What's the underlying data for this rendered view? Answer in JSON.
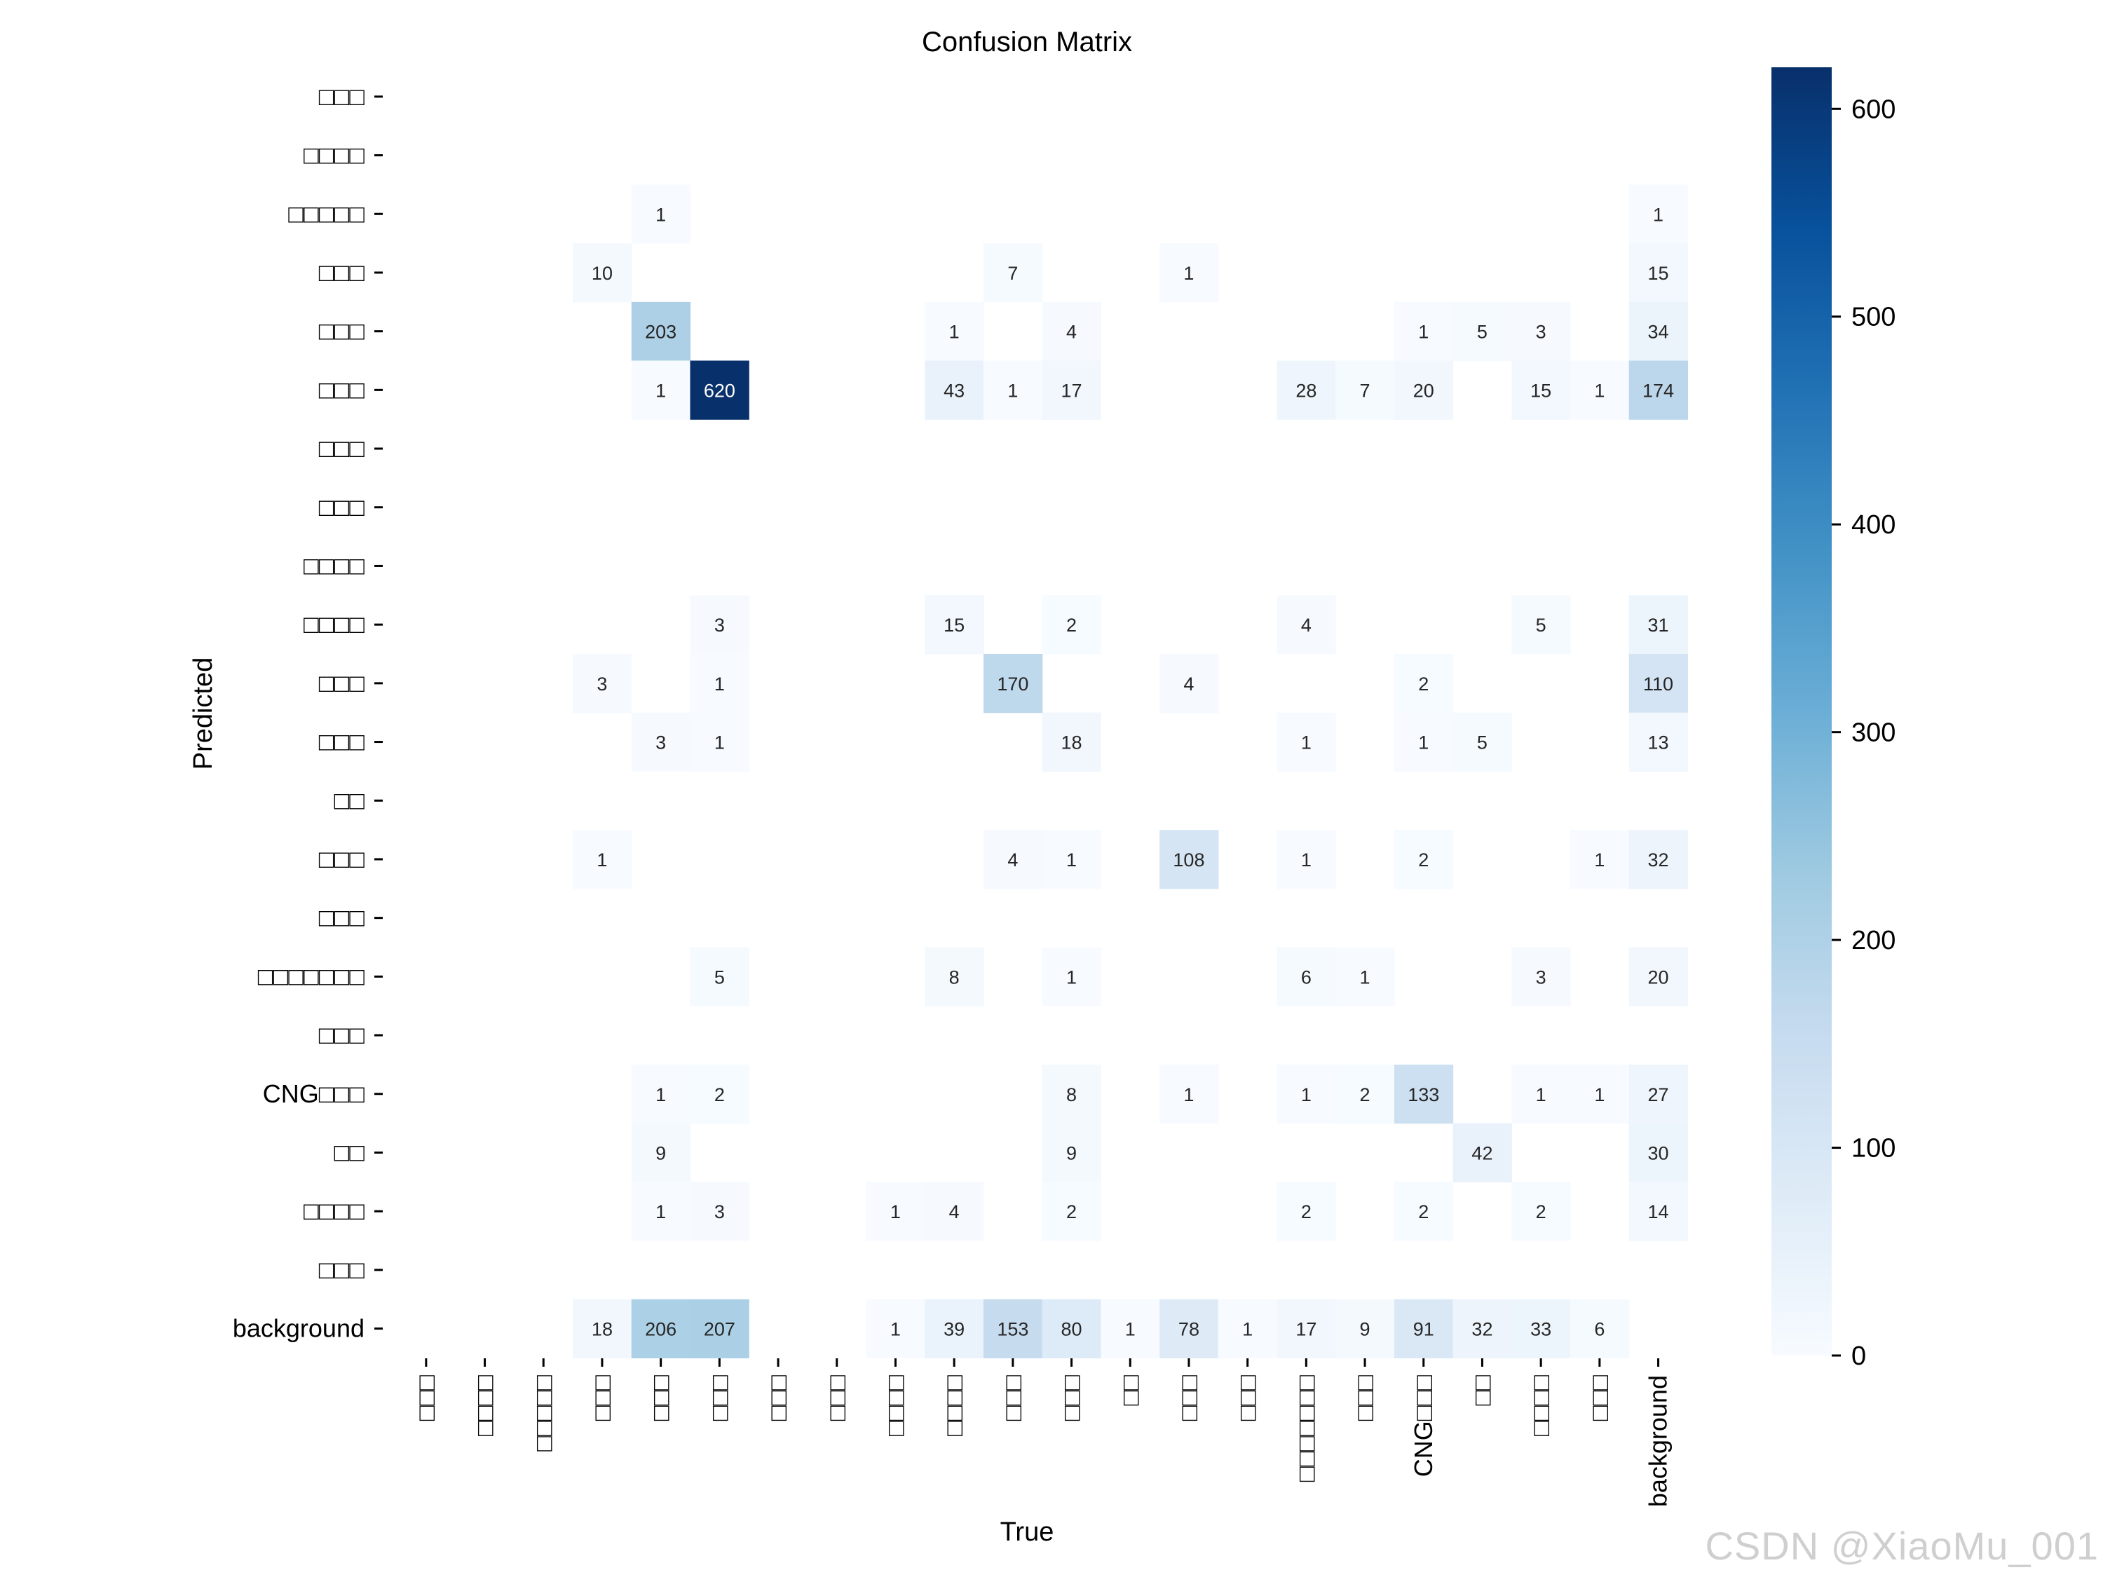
{
  "colors": {
    "low": "#f7fbff",
    "high": "#08306b"
  },
  "watermark": "CSDN @XiaoMu_001",
  "chart_data": {
    "type": "heatmap",
    "title": "Confusion Matrix",
    "xlabel": "True",
    "ylabel": "Predicted",
    "labels": [
      "□□□",
      "□□□□",
      "□□□□□",
      "□□□",
      "□□□",
      "□□□",
      "□□□",
      "□□□",
      "□□□□",
      "□□□□",
      "□□□",
      "□□□",
      "□□",
      "□□□",
      "□□□",
      "□□□□□□□",
      "□□□",
      "CNG□□□",
      "□□",
      "□□□□",
      "□□□",
      "background"
    ],
    "colorbar": {
      "min": 0,
      "max": 620,
      "ticks": [
        0,
        100,
        200,
        300,
        400,
        500,
        600
      ]
    },
    "matrix": [
      [
        null,
        null,
        null,
        null,
        null,
        null,
        null,
        null,
        null,
        null,
        null,
        null,
        null,
        null,
        null,
        null,
        null,
        null,
        null,
        null,
        null,
        null
      ],
      [
        null,
        null,
        null,
        null,
        null,
        null,
        null,
        null,
        null,
        null,
        null,
        null,
        null,
        null,
        null,
        null,
        null,
        null,
        null,
        null,
        null,
        null
      ],
      [
        null,
        null,
        null,
        null,
        1,
        null,
        null,
        null,
        null,
        null,
        null,
        null,
        null,
        null,
        null,
        null,
        null,
        null,
        null,
        null,
        null,
        1
      ],
      [
        null,
        null,
        null,
        10,
        null,
        null,
        null,
        null,
        null,
        null,
        7,
        null,
        null,
        1,
        null,
        null,
        null,
        null,
        null,
        null,
        null,
        15
      ],
      [
        null,
        null,
        null,
        null,
        203,
        null,
        null,
        null,
        null,
        1,
        null,
        4,
        null,
        null,
        null,
        null,
        null,
        1,
        5,
        3,
        null,
        34
      ],
      [
        null,
        null,
        null,
        null,
        1,
        620,
        null,
        null,
        null,
        43,
        1,
        17,
        null,
        null,
        null,
        28,
        7,
        20,
        null,
        15,
        1,
        174
      ],
      [
        null,
        null,
        null,
        null,
        null,
        null,
        null,
        null,
        null,
        null,
        null,
        null,
        null,
        null,
        null,
        null,
        null,
        null,
        null,
        null,
        null,
        null
      ],
      [
        null,
        null,
        null,
        null,
        null,
        null,
        null,
        null,
        null,
        null,
        null,
        null,
        null,
        null,
        null,
        null,
        null,
        null,
        null,
        null,
        null,
        null
      ],
      [
        null,
        null,
        null,
        null,
        null,
        null,
        null,
        null,
        null,
        null,
        null,
        null,
        null,
        null,
        null,
        null,
        null,
        null,
        null,
        null,
        null,
        null
      ],
      [
        null,
        null,
        null,
        null,
        null,
        3,
        null,
        null,
        null,
        15,
        null,
        2,
        null,
        null,
        null,
        4,
        null,
        null,
        null,
        5,
        null,
        31
      ],
      [
        null,
        null,
        null,
        3,
        null,
        1,
        null,
        null,
        null,
        null,
        170,
        null,
        null,
        4,
        null,
        null,
        null,
        2,
        null,
        null,
        null,
        110
      ],
      [
        null,
        null,
        null,
        null,
        3,
        1,
        null,
        null,
        null,
        null,
        null,
        18,
        null,
        null,
        null,
        1,
        null,
        1,
        5,
        null,
        null,
        13
      ],
      [
        null,
        null,
        null,
        null,
        null,
        null,
        null,
        null,
        null,
        null,
        null,
        null,
        null,
        null,
        null,
        null,
        null,
        null,
        null,
        null,
        null,
        null
      ],
      [
        null,
        null,
        null,
        1,
        null,
        null,
        null,
        null,
        null,
        null,
        4,
        1,
        null,
        108,
        null,
        1,
        null,
        2,
        null,
        null,
        1,
        32
      ],
      [
        null,
        null,
        null,
        null,
        null,
        null,
        null,
        null,
        null,
        null,
        null,
        null,
        null,
        null,
        null,
        null,
        null,
        null,
        null,
        null,
        null,
        null
      ],
      [
        null,
        null,
        null,
        null,
        null,
        5,
        null,
        null,
        null,
        8,
        null,
        1,
        null,
        null,
        null,
        6,
        1,
        null,
        null,
        3,
        null,
        20
      ],
      [
        null,
        null,
        null,
        null,
        null,
        null,
        null,
        null,
        null,
        null,
        null,
        null,
        null,
        null,
        null,
        null,
        null,
        null,
        null,
        null,
        null,
        null
      ],
      [
        null,
        null,
        null,
        null,
        1,
        2,
        null,
        null,
        null,
        null,
        null,
        8,
        null,
        1,
        null,
        1,
        2,
        133,
        null,
        1,
        1,
        27
      ],
      [
        null,
        null,
        null,
        null,
        9,
        null,
        null,
        null,
        null,
        null,
        null,
        9,
        null,
        null,
        null,
        null,
        null,
        null,
        42,
        null,
        null,
        30
      ],
      [
        null,
        null,
        null,
        null,
        1,
        3,
        null,
        null,
        1,
        4,
        null,
        2,
        null,
        null,
        null,
        2,
        null,
        2,
        null,
        2,
        null,
        14
      ],
      [
        null,
        null,
        null,
        null,
        null,
        null,
        null,
        null,
        null,
        null,
        null,
        null,
        null,
        null,
        null,
        null,
        null,
        null,
        null,
        null,
        null,
        null
      ],
      [
        null,
        null,
        null,
        18,
        206,
        207,
        null,
        null,
        1,
        39,
        153,
        80,
        1,
        78,
        1,
        17,
        9,
        91,
        32,
        33,
        6,
        null
      ]
    ]
  }
}
